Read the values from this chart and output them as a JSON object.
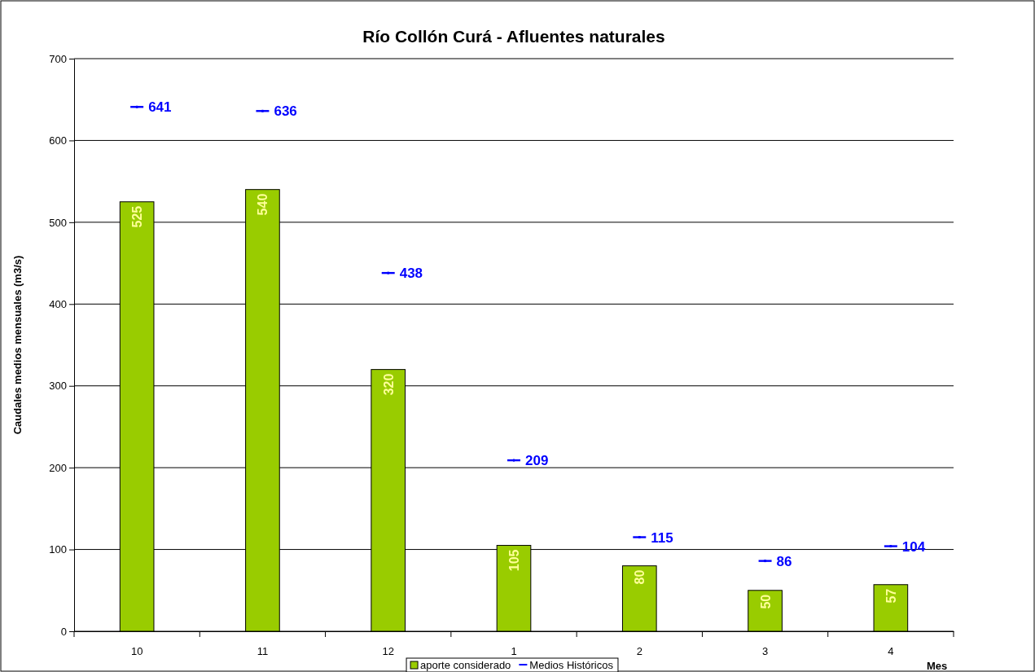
{
  "chart_data": {
    "type": "bar",
    "title": "Río Collón Curá - Afluentes naturales",
    "xlabel": "Mes",
    "ylabel": "Caudales medios mensuales (m3/s)",
    "categories": [
      "10",
      "11",
      "12",
      "1",
      "2",
      "3",
      "4"
    ],
    "series": [
      {
        "name": "aporte considerado",
        "type": "bar",
        "color": "#99cc00",
        "values": [
          525,
          540,
          320,
          105,
          80,
          50,
          57
        ]
      },
      {
        "name": "Medios Históricos",
        "type": "scatter",
        "color": "#0000ff",
        "values": [
          641,
          636,
          438,
          209,
          115,
          86,
          104
        ]
      }
    ],
    "ylim": [
      0,
      700
    ],
    "yticks": [
      0,
      100,
      200,
      300,
      400,
      500,
      600,
      700
    ],
    "grid": "y",
    "legend": "bottom",
    "data_labels": true
  }
}
